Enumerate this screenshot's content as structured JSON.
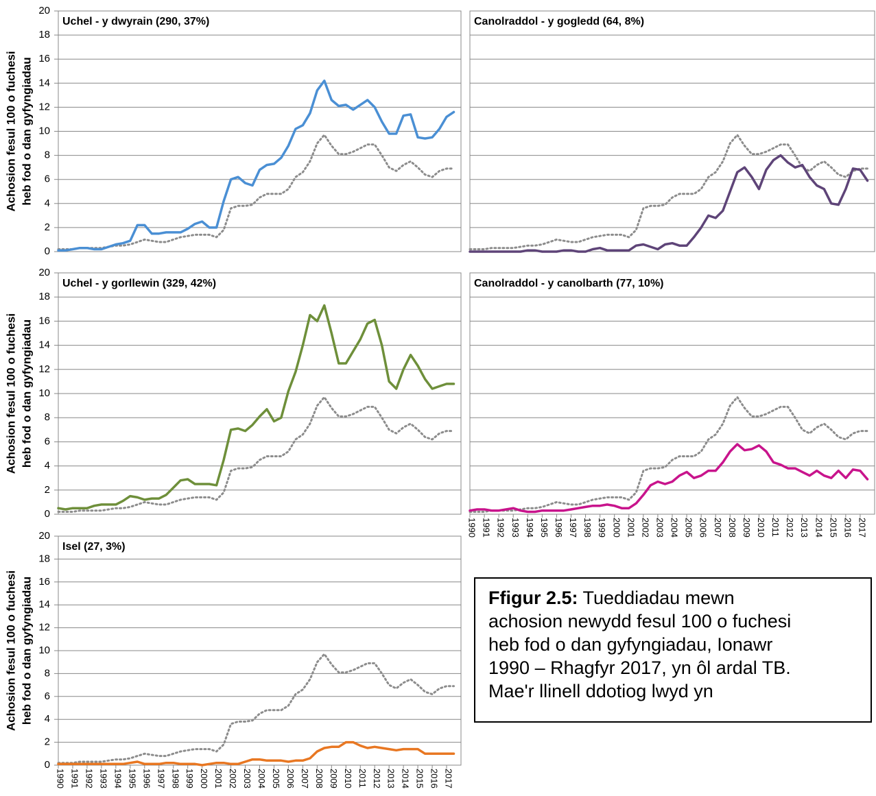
{
  "chart_data": [
    {
      "type": "line",
      "title": "Uchel - y dwyrain (290, 37%)",
      "ylabel": [
        "Achosion fesul 100 o fuchesi",
        "heb fod o dan gyfyngiadau"
      ],
      "x": [
        1990,
        1990.5,
        1991,
        1991.5,
        1992,
        1992.5,
        1993,
        1993.5,
        1994,
        1994.5,
        1995,
        1995.5,
        1996,
        1996.5,
        1997,
        1997.5,
        1998,
        1998.5,
        1999,
        1999.5,
        2000,
        2000.5,
        2001,
        2001.5,
        2002,
        2002.5,
        2003,
        2003.5,
        2004,
        2004.5,
        2005,
        2005.5,
        2006,
        2006.5,
        2007,
        2007.5,
        2008,
        2008.5,
        2009,
        2009.5,
        2010,
        2010.5,
        2011,
        2011.5,
        2012,
        2012.5,
        2013,
        2013.5,
        2014,
        2014.5,
        2015,
        2015.5,
        2016,
        2016.5,
        2017,
        2017.5
      ],
      "xlim": [
        1990,
        2018
      ],
      "ylim": [
        0,
        20
      ],
      "yticks": [
        0,
        2,
        4,
        6,
        8,
        10,
        12,
        14,
        16,
        18,
        20
      ],
      "grid": true,
      "series": [
        {
          "color": "#8c8c8c",
          "dash": "dotted",
          "values": [
            0.2,
            0.2,
            0.2,
            0.3,
            0.3,
            0.3,
            0.3,
            0.4,
            0.5,
            0.5,
            0.6,
            0.8,
            1.0,
            0.9,
            0.8,
            0.8,
            1.0,
            1.2,
            1.3,
            1.4,
            1.4,
            1.4,
            1.2,
            1.8,
            3.6,
            3.8,
            3.8,
            3.9,
            4.5,
            4.8,
            4.8,
            4.8,
            5.2,
            6.2,
            6.6,
            7.5,
            9.0,
            9.7,
            8.8,
            8.1,
            8.1,
            8.3,
            8.6,
            8.9,
            8.9,
            8.0,
            7.0,
            6.7,
            7.2,
            7.5,
            7.0,
            6.4,
            6.2,
            6.7,
            6.9,
            6.9
          ]
        },
        {
          "color": "#4a8fd4",
          "values": [
            0.1,
            0.1,
            0.2,
            0.3,
            0.3,
            0.2,
            0.2,
            0.4,
            0.6,
            0.7,
            0.9,
            2.2,
            2.2,
            1.5,
            1.5,
            1.6,
            1.6,
            1.6,
            1.9,
            2.3,
            2.5,
            2.0,
            2.0,
            4.2,
            6.0,
            6.2,
            5.7,
            5.5,
            6.8,
            7.2,
            7.3,
            7.8,
            8.8,
            10.2,
            10.5,
            11.5,
            13.4,
            14.2,
            12.6,
            12.1,
            12.2,
            11.8,
            12.2,
            12.6,
            12.0,
            10.8,
            9.8,
            9.8,
            11.3,
            11.4,
            9.5,
            9.4,
            9.5,
            10.2,
            11.2,
            11.6
          ]
        }
      ]
    },
    {
      "type": "line",
      "title": "Canolraddol - y gogledd (64, 8%)",
      "x": [
        1990,
        1990.5,
        1991,
        1991.5,
        1992,
        1992.5,
        1993,
        1993.5,
        1994,
        1994.5,
        1995,
        1995.5,
        1996,
        1996.5,
        1997,
        1997.5,
        1998,
        1998.5,
        1999,
        1999.5,
        2000,
        2000.5,
        2001,
        2001.5,
        2002,
        2002.5,
        2003,
        2003.5,
        2004,
        2004.5,
        2005,
        2005.5,
        2006,
        2006.5,
        2007,
        2007.5,
        2008,
        2008.5,
        2009,
        2009.5,
        2010,
        2010.5,
        2011,
        2011.5,
        2012,
        2012.5,
        2013,
        2013.5,
        2014,
        2014.5,
        2015,
        2015.5,
        2016,
        2016.5,
        2017,
        2017.5
      ],
      "xlim": [
        1990,
        2018
      ],
      "ylim": [
        0,
        20
      ],
      "yticks": [
        0,
        2,
        4,
        6,
        8,
        10,
        12,
        14,
        16,
        18,
        20
      ],
      "grid": true,
      "series": [
        {
          "color": "#8c8c8c",
          "dash": "dotted",
          "values": [
            0.2,
            0.2,
            0.2,
            0.3,
            0.3,
            0.3,
            0.3,
            0.4,
            0.5,
            0.5,
            0.6,
            0.8,
            1.0,
            0.9,
            0.8,
            0.8,
            1.0,
            1.2,
            1.3,
            1.4,
            1.4,
            1.4,
            1.2,
            1.8,
            3.6,
            3.8,
            3.8,
            3.9,
            4.5,
            4.8,
            4.8,
            4.8,
            5.2,
            6.2,
            6.6,
            7.5,
            9.0,
            9.7,
            8.8,
            8.1,
            8.1,
            8.3,
            8.6,
            8.9,
            8.9,
            8.0,
            7.0,
            6.7,
            7.2,
            7.5,
            7.0,
            6.4,
            6.2,
            6.7,
            6.9,
            6.9
          ]
        },
        {
          "color": "#5e4478",
          "values": [
            0,
            0,
            0,
            0,
            0,
            0,
            0,
            0,
            0.1,
            0.1,
            0,
            0,
            0,
            0.1,
            0.1,
            0,
            0,
            0.2,
            0.3,
            0.1,
            0.1,
            0.1,
            0.1,
            0.5,
            0.6,
            0.4,
            0.2,
            0.6,
            0.7,
            0.5,
            0.5,
            1.2,
            2.0,
            3.0,
            2.8,
            3.4,
            5.0,
            6.6,
            7.0,
            6.2,
            5.2,
            6.8,
            7.6,
            8.0,
            7.4,
            7.0,
            7.2,
            6.2,
            5.5,
            5.2,
            4.0,
            3.9,
            5.2,
            6.9,
            6.8,
            5.9
          ]
        }
      ]
    },
    {
      "type": "line",
      "title": "Uchel - y gorllewin (329, 42%)",
      "ylabel": [
        "Achosion fesul 100 o fuchesi",
        "heb fod o dan gyfyngiadau"
      ],
      "x": [
        1990,
        1990.5,
        1991,
        1991.5,
        1992,
        1992.5,
        1993,
        1993.5,
        1994,
        1994.5,
        1995,
        1995.5,
        1996,
        1996.5,
        1997,
        1997.5,
        1998,
        1998.5,
        1999,
        1999.5,
        2000,
        2000.5,
        2001,
        2001.5,
        2002,
        2002.5,
        2003,
        2003.5,
        2004,
        2004.5,
        2005,
        2005.5,
        2006,
        2006.5,
        2007,
        2007.5,
        2008,
        2008.5,
        2009,
        2009.5,
        2010,
        2010.5,
        2011,
        2011.5,
        2012,
        2012.5,
        2013,
        2013.5,
        2014,
        2014.5,
        2015,
        2015.5,
        2016,
        2016.5,
        2017,
        2017.5
      ],
      "xlim": [
        1990,
        2018
      ],
      "ylim": [
        0,
        20
      ],
      "yticks": [
        0,
        2,
        4,
        6,
        8,
        10,
        12,
        14,
        16,
        18,
        20
      ],
      "grid": true,
      "series": [
        {
          "color": "#8c8c8c",
          "dash": "dotted",
          "values": [
            0.2,
            0.2,
            0.2,
            0.3,
            0.3,
            0.3,
            0.3,
            0.4,
            0.5,
            0.5,
            0.6,
            0.8,
            1.0,
            0.9,
            0.8,
            0.8,
            1.0,
            1.2,
            1.3,
            1.4,
            1.4,
            1.4,
            1.2,
            1.8,
            3.6,
            3.8,
            3.8,
            3.9,
            4.5,
            4.8,
            4.8,
            4.8,
            5.2,
            6.2,
            6.6,
            7.5,
            9.0,
            9.7,
            8.8,
            8.1,
            8.1,
            8.3,
            8.6,
            8.9,
            8.9,
            8.0,
            7.0,
            6.7,
            7.2,
            7.5,
            7.0,
            6.4,
            6.2,
            6.7,
            6.9,
            6.9
          ]
        },
        {
          "color": "#6e8f3a",
          "values": [
            0.5,
            0.4,
            0.5,
            0.5,
            0.5,
            0.7,
            0.8,
            0.8,
            0.8,
            1.1,
            1.5,
            1.4,
            1.2,
            1.3,
            1.3,
            1.6,
            2.2,
            2.8,
            2.9,
            2.5,
            2.5,
            2.5,
            2.4,
            4.5,
            7.0,
            7.1,
            6.9,
            7.4,
            8.1,
            8.7,
            7.7,
            8.0,
            10.2,
            11.8,
            14.0,
            16.5,
            16.0,
            17.3,
            15.0,
            12.5,
            12.5,
            13.5,
            14.5,
            15.8,
            16.1,
            14.0,
            11.0,
            10.4,
            12.0,
            13.2,
            12.3,
            11.2,
            10.4,
            10.6,
            10.8,
            10.8
          ]
        }
      ]
    },
    {
      "type": "line",
      "title": "Canolraddol - y canolbarth (77, 10%)",
      "x": [
        1990,
        1990.5,
        1991,
        1991.5,
        1992,
        1992.5,
        1993,
        1993.5,
        1994,
        1994.5,
        1995,
        1995.5,
        1996,
        1996.5,
        1997,
        1997.5,
        1998,
        1998.5,
        1999,
        1999.5,
        2000,
        2000.5,
        2001,
        2001.5,
        2002,
        2002.5,
        2003,
        2003.5,
        2004,
        2004.5,
        2005,
        2005.5,
        2006,
        2006.5,
        2007,
        2007.5,
        2008,
        2008.5,
        2009,
        2009.5,
        2010,
        2010.5,
        2011,
        2011.5,
        2012,
        2012.5,
        2013,
        2013.5,
        2014,
        2014.5,
        2015,
        2015.5,
        2016,
        2016.5,
        2017,
        2017.5
      ],
      "xlim": [
        1990,
        2018
      ],
      "xticks": [
        1990,
        1991,
        1992,
        1993,
        1994,
        1995,
        1996,
        1997,
        1998,
        1999,
        2000,
        2001,
        2002,
        2003,
        2004,
        2005,
        2006,
        2007,
        2008,
        2009,
        2010,
        2011,
        2012,
        2013,
        2014,
        2015,
        2016,
        2017
      ],
      "ylim": [
        0,
        20
      ],
      "yticks": [
        0,
        2,
        4,
        6,
        8,
        10,
        12,
        14,
        16,
        18,
        20
      ],
      "grid": true,
      "series": [
        {
          "color": "#8c8c8c",
          "dash": "dotted",
          "values": [
            0.2,
            0.2,
            0.2,
            0.3,
            0.3,
            0.3,
            0.3,
            0.4,
            0.5,
            0.5,
            0.6,
            0.8,
            1.0,
            0.9,
            0.8,
            0.8,
            1.0,
            1.2,
            1.3,
            1.4,
            1.4,
            1.4,
            1.2,
            1.8,
            3.6,
            3.8,
            3.8,
            3.9,
            4.5,
            4.8,
            4.8,
            4.8,
            5.2,
            6.2,
            6.6,
            7.5,
            9.0,
            9.7,
            8.8,
            8.1,
            8.1,
            8.3,
            8.6,
            8.9,
            8.9,
            8.0,
            7.0,
            6.7,
            7.2,
            7.5,
            7.0,
            6.4,
            6.2,
            6.7,
            6.9,
            6.9
          ]
        },
        {
          "color": "#c8148c",
          "values": [
            0.3,
            0.4,
            0.4,
            0.3,
            0.3,
            0.4,
            0.5,
            0.3,
            0.2,
            0.2,
            0.3,
            0.3,
            0.3,
            0.3,
            0.4,
            0.5,
            0.6,
            0.7,
            0.7,
            0.8,
            0.7,
            0.5,
            0.5,
            0.9,
            1.6,
            2.4,
            2.7,
            2.5,
            2.7,
            3.2,
            3.5,
            3.0,
            3.2,
            3.6,
            3.6,
            4.3,
            5.2,
            5.8,
            5.3,
            5.4,
            5.7,
            5.2,
            4.3,
            4.1,
            3.8,
            3.8,
            3.5,
            3.2,
            3.6,
            3.2,
            3.0,
            3.6,
            3.0,
            3.7,
            3.6,
            2.9
          ]
        }
      ]
    },
    {
      "type": "line",
      "title": "Isel (27, 3%)",
      "ylabel": [
        "Achosion fesul 100 o fuchesi",
        "heb fod o dan gyfyngiadau"
      ],
      "x": [
        1990,
        1990.5,
        1991,
        1991.5,
        1992,
        1992.5,
        1993,
        1993.5,
        1994,
        1994.5,
        1995,
        1995.5,
        1996,
        1996.5,
        1997,
        1997.5,
        1998,
        1998.5,
        1999,
        1999.5,
        2000,
        2000.5,
        2001,
        2001.5,
        2002,
        2002.5,
        2003,
        2003.5,
        2004,
        2004.5,
        2005,
        2005.5,
        2006,
        2006.5,
        2007,
        2007.5,
        2008,
        2008.5,
        2009,
        2009.5,
        2010,
        2010.5,
        2011,
        2011.5,
        2012,
        2012.5,
        2013,
        2013.5,
        2014,
        2014.5,
        2015,
        2015.5,
        2016,
        2016.5,
        2017,
        2017.5
      ],
      "xlim": [
        1990,
        2018
      ],
      "xticks": [
        1990,
        1991,
        1992,
        1993,
        1994,
        1995,
        1996,
        1997,
        1998,
        1999,
        2000,
        2001,
        2002,
        2003,
        2004,
        2005,
        2006,
        2007,
        2008,
        2009,
        2010,
        2011,
        2012,
        2013,
        2014,
        2015,
        2016,
        2017
      ],
      "ylim": [
        0,
        20
      ],
      "yticks": [
        0,
        2,
        4,
        6,
        8,
        10,
        12,
        14,
        16,
        18,
        20
      ],
      "grid": true,
      "series": [
        {
          "color": "#8c8c8c",
          "dash": "dotted",
          "values": [
            0.2,
            0.2,
            0.2,
            0.3,
            0.3,
            0.3,
            0.3,
            0.4,
            0.5,
            0.5,
            0.6,
            0.8,
            1.0,
            0.9,
            0.8,
            0.8,
            1.0,
            1.2,
            1.3,
            1.4,
            1.4,
            1.4,
            1.2,
            1.8,
            3.6,
            3.8,
            3.8,
            3.9,
            4.5,
            4.8,
            4.8,
            4.8,
            5.2,
            6.2,
            6.6,
            7.5,
            9.0,
            9.7,
            8.8,
            8.1,
            8.1,
            8.3,
            8.6,
            8.9,
            8.9,
            8.0,
            7.0,
            6.7,
            7.2,
            7.5,
            7.0,
            6.4,
            6.2,
            6.7,
            6.9,
            6.9
          ]
        },
        {
          "color": "#e87722",
          "values": [
            0.1,
            0.1,
            0.1,
            0.1,
            0.1,
            0.1,
            0.1,
            0.1,
            0.1,
            0.1,
            0.2,
            0.3,
            0.1,
            0.1,
            0.1,
            0.2,
            0.2,
            0.1,
            0.1,
            0.1,
            0,
            0.1,
            0.2,
            0.2,
            0.1,
            0.1,
            0.3,
            0.5,
            0.5,
            0.4,
            0.4,
            0.4,
            0.3,
            0.4,
            0.4,
            0.6,
            1.2,
            1.5,
            1.6,
            1.6,
            2.0,
            2.0,
            1.7,
            1.5,
            1.6,
            1.5,
            1.4,
            1.3,
            1.4,
            1.4,
            1.4,
            1.0,
            1.0,
            1.0,
            1.0,
            1.0
          ]
        }
      ]
    }
  ],
  "caption": {
    "label": "Ffigur 2.5:",
    "lines": [
      " Tueddiadau mewn",
      "achosion newydd fesul 100 o fuchesi",
      "heb fod o dan gyfyngiadau, Ionawr",
      "1990 – Rhagfyr 2017, yn ôl ardal TB.",
      "Mae'r llinell ddotiog lwyd yn"
    ]
  }
}
